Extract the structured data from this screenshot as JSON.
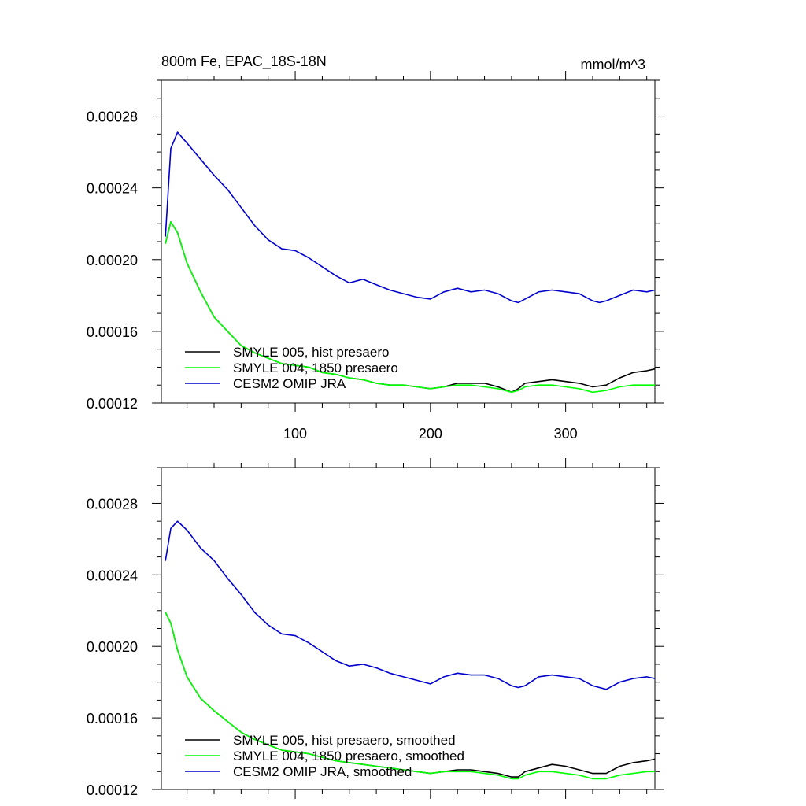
{
  "chart_data": [
    {
      "type": "line",
      "title": "800m Fe, EPAC_18S-18N",
      "units_label": "mmol/m^3",
      "xlabel": "",
      "ylabel": "",
      "xlim": [
        1,
        366
      ],
      "ylim": [
        0.00012,
        0.0003
      ],
      "x_ticks": [
        100,
        200,
        300
      ],
      "x_tick_labels": [
        "100",
        "200",
        "300"
      ],
      "y_ticks": [
        0.00012,
        0.00016,
        0.0002,
        0.00024,
        0.00028
      ],
      "y_tick_labels": [
        "0.00012",
        "0.00016",
        "0.00020",
        "0.00024",
        "0.00028"
      ],
      "grid": false,
      "legend_position": "bottom-left",
      "series": [
        {
          "name": "SMYLE 005, hist presaero",
          "color": "#000000",
          "x": [
            4,
            8,
            13,
            20,
            30,
            40,
            50,
            60,
            70,
            80,
            90,
            100,
            110,
            120,
            130,
            140,
            150,
            160,
            170,
            180,
            190,
            200,
            210,
            220,
            230,
            240,
            250,
            260,
            265,
            270,
            280,
            290,
            300,
            310,
            320,
            330,
            340,
            350,
            360,
            366
          ],
          "values": [
            0.000209,
            0.000221,
            0.000215,
            0.000198,
            0.000182,
            0.000168,
            0.00016,
            0.000152,
            0.000148,
            0.000145,
            0.000142,
            0.000141,
            0.00014,
            0.000137,
            0.000136,
            0.000134,
            0.000133,
            0.000131,
            0.00013,
            0.00013,
            0.000129,
            0.000128,
            0.000129,
            0.000131,
            0.000131,
            0.000131,
            0.000129,
            0.000126,
            0.000128,
            0.000131,
            0.000132,
            0.000133,
            0.000132,
            0.000131,
            0.000129,
            0.00013,
            0.000134,
            0.000137,
            0.000138,
            0.000139
          ]
        },
        {
          "name": "SMYLE 004, 1850 presaero",
          "color": "#00ff00",
          "x": [
            4,
            8,
            13,
            20,
            30,
            40,
            50,
            60,
            70,
            80,
            90,
            100,
            110,
            120,
            130,
            140,
            150,
            160,
            170,
            180,
            190,
            200,
            210,
            220,
            230,
            240,
            250,
            260,
            265,
            270,
            280,
            290,
            300,
            310,
            320,
            330,
            340,
            350,
            360,
            366
          ],
          "values": [
            0.000209,
            0.000221,
            0.000215,
            0.000198,
            0.000182,
            0.000168,
            0.00016,
            0.000152,
            0.000148,
            0.000145,
            0.000142,
            0.000141,
            0.00014,
            0.000137,
            0.000136,
            0.000134,
            0.000133,
            0.000131,
            0.00013,
            0.00013,
            0.000129,
            0.000128,
            0.000129,
            0.00013,
            0.00013,
            0.000129,
            0.000128,
            0.000126,
            0.000127,
            0.000129,
            0.00013,
            0.00013,
            0.000129,
            0.000128,
            0.000126,
            0.000127,
            0.000129,
            0.00013,
            0.00013,
            0.00013
          ]
        },
        {
          "name": "CESM2 OMIP JRA",
          "color": "#0000cc",
          "x": [
            4,
            8,
            13,
            20,
            30,
            40,
            50,
            60,
            70,
            80,
            90,
            100,
            110,
            120,
            130,
            140,
            150,
            160,
            170,
            180,
            190,
            200,
            210,
            220,
            230,
            240,
            250,
            260,
            265,
            270,
            280,
            290,
            300,
            310,
            320,
            325,
            330,
            340,
            350,
            360,
            366
          ],
          "values": [
            0.000213,
            0.000262,
            0.000271,
            0.000265,
            0.000256,
            0.000247,
            0.000239,
            0.000229,
            0.000219,
            0.000211,
            0.000206,
            0.000205,
            0.000201,
            0.000196,
            0.000191,
            0.000187,
            0.000189,
            0.000186,
            0.000183,
            0.000181,
            0.000179,
            0.000178,
            0.000182,
            0.000184,
            0.000182,
            0.000183,
            0.000181,
            0.000177,
            0.000176,
            0.000178,
            0.000182,
            0.000183,
            0.000182,
            0.000181,
            0.000177,
            0.000176,
            0.000177,
            0.00018,
            0.000183,
            0.000182,
            0.000183
          ]
        }
      ]
    },
    {
      "type": "line",
      "title": "",
      "xlabel": "",
      "ylabel": "",
      "xlim": [
        1,
        366
      ],
      "ylim": [
        0.00012,
        0.0003
      ],
      "x_ticks": [
        100,
        200,
        300
      ],
      "x_tick_labels": [
        "",
        "",
        ""
      ],
      "y_ticks": [
        0.00012,
        0.00016,
        0.0002,
        0.00024,
        0.00028
      ],
      "y_tick_labels": [
        "0.00012",
        "0.00016",
        "0.00020",
        "0.00024",
        "0.00028"
      ],
      "grid": false,
      "legend_position": "bottom-left",
      "series": [
        {
          "name": "SMYLE 005, hist presaero, smoothed",
          "color": "#000000",
          "x": [
            4,
            8,
            13,
            20,
            30,
            40,
            50,
            60,
            70,
            80,
            90,
            100,
            110,
            120,
            130,
            140,
            150,
            160,
            170,
            180,
            190,
            200,
            210,
            220,
            230,
            240,
            250,
            260,
            265,
            270,
            280,
            290,
            300,
            310,
            320,
            330,
            340,
            350,
            360,
            366
          ],
          "values": [
            0.000219,
            0.000213,
            0.000198,
            0.000183,
            0.000171,
            0.000164,
            0.000158,
            0.000152,
            0.000148,
            0.000145,
            0.000142,
            0.000141,
            0.00014,
            0.000138,
            0.000136,
            0.000135,
            0.000134,
            0.000133,
            0.000132,
            0.000131,
            0.00013,
            0.000129,
            0.00013,
            0.000131,
            0.000131,
            0.00013,
            0.000129,
            0.000127,
            0.000127,
            0.00013,
            0.000132,
            0.000134,
            0.000133,
            0.000131,
            0.000129,
            0.000129,
            0.000133,
            0.000135,
            0.000136,
            0.000137
          ]
        },
        {
          "name": "SMYLE 004, 1850 presaero, smoothed",
          "color": "#00ff00",
          "x": [
            4,
            8,
            13,
            20,
            30,
            40,
            50,
            60,
            70,
            80,
            90,
            100,
            110,
            120,
            130,
            140,
            150,
            160,
            170,
            180,
            190,
            200,
            210,
            220,
            230,
            240,
            250,
            260,
            265,
            270,
            280,
            290,
            300,
            310,
            320,
            330,
            340,
            350,
            360,
            366
          ],
          "values": [
            0.000219,
            0.000213,
            0.000198,
            0.000183,
            0.000171,
            0.000164,
            0.000158,
            0.000152,
            0.000148,
            0.000145,
            0.000142,
            0.000141,
            0.00014,
            0.000138,
            0.000136,
            0.000135,
            0.000134,
            0.000133,
            0.000132,
            0.000131,
            0.00013,
            0.000129,
            0.00013,
            0.00013,
            0.00013,
            0.000129,
            0.000128,
            0.000126,
            0.000126,
            0.000128,
            0.00013,
            0.00013,
            0.000129,
            0.000128,
            0.000126,
            0.000126,
            0.000128,
            0.000129,
            0.00013,
            0.00013
          ]
        },
        {
          "name": "CESM2 OMIP JRA, smoothed",
          "color": "#0000cc",
          "x": [
            4,
            8,
            13,
            20,
            30,
            40,
            50,
            60,
            70,
            80,
            90,
            100,
            110,
            120,
            130,
            140,
            150,
            160,
            170,
            180,
            190,
            200,
            210,
            220,
            230,
            240,
            250,
            260,
            265,
            270,
            280,
            290,
            300,
            310,
            320,
            325,
            330,
            340,
            350,
            360,
            366
          ],
          "values": [
            0.000248,
            0.000266,
            0.00027,
            0.000265,
            0.000255,
            0.000248,
            0.000238,
            0.000229,
            0.000219,
            0.000212,
            0.000207,
            0.000206,
            0.000202,
            0.000197,
            0.000192,
            0.000189,
            0.00019,
            0.000188,
            0.000185,
            0.000183,
            0.000181,
            0.000179,
            0.000183,
            0.000185,
            0.000184,
            0.000184,
            0.000182,
            0.000178,
            0.000177,
            0.000178,
            0.000183,
            0.000184,
            0.000183,
            0.000182,
            0.000178,
            0.000177,
            0.000176,
            0.00018,
            0.000182,
            0.000183,
            0.000182
          ]
        }
      ]
    }
  ]
}
